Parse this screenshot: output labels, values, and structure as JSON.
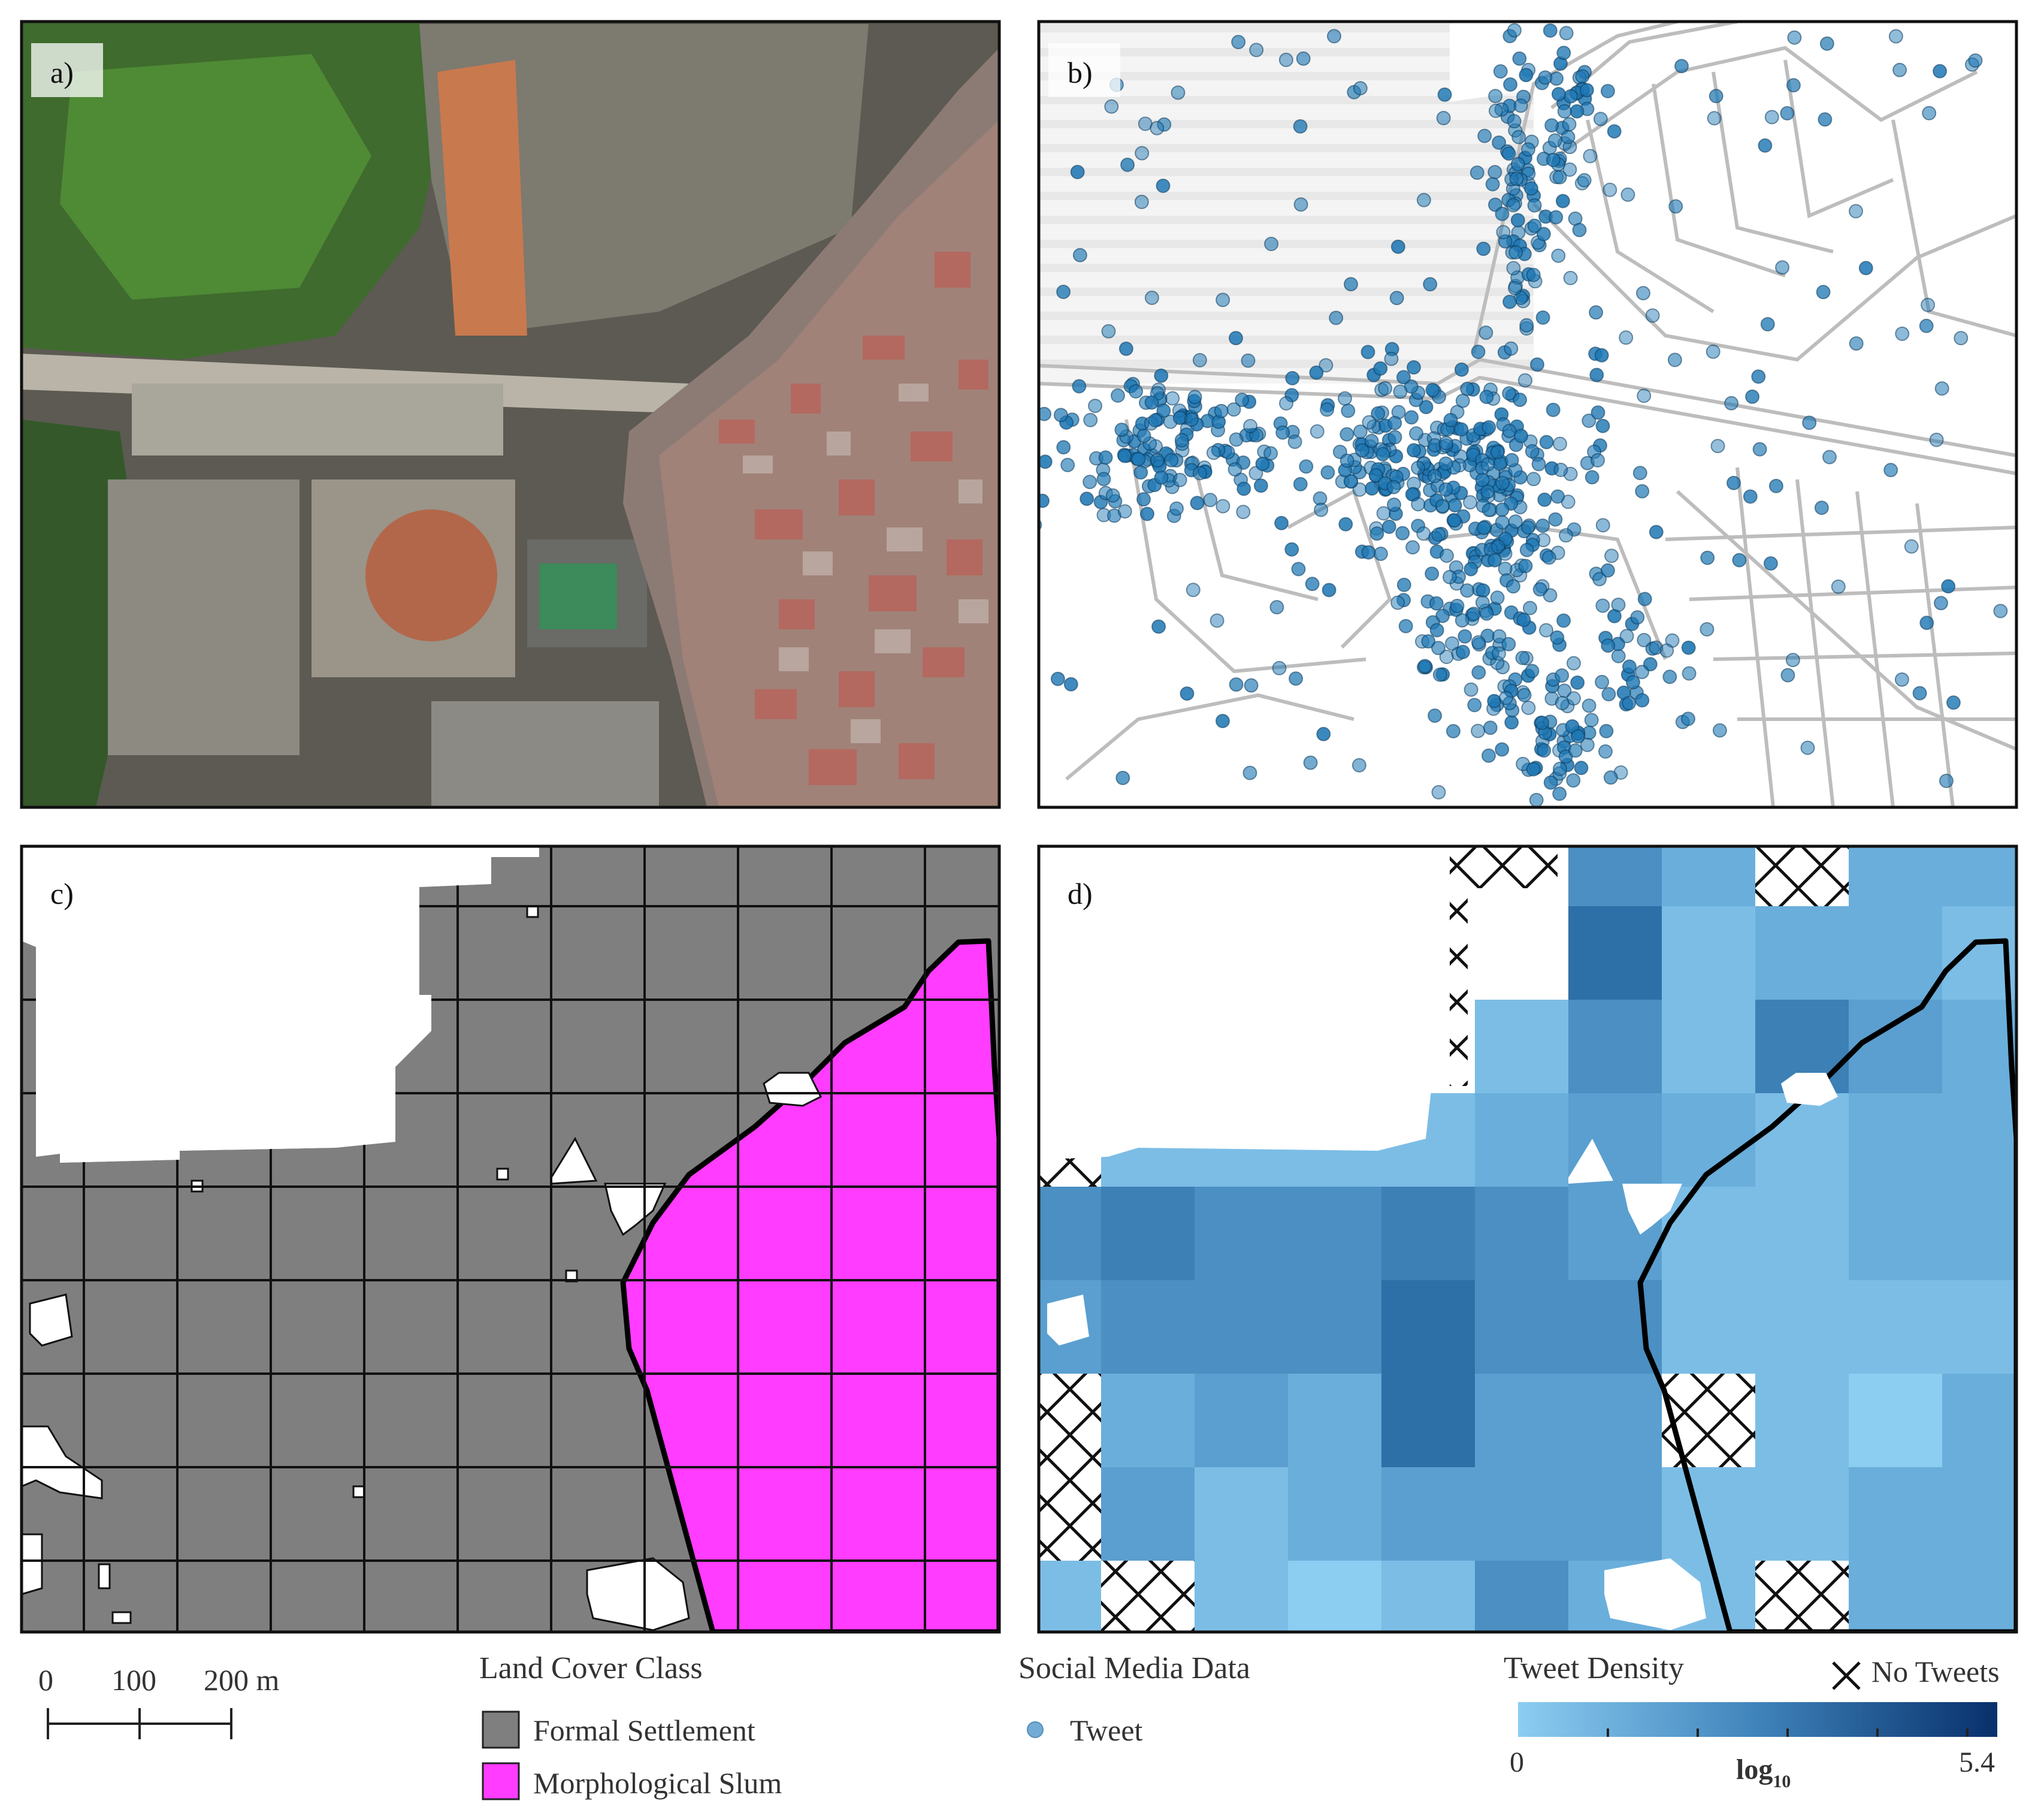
{
  "panels": {
    "a": {
      "label": "a)"
    },
    "b": {
      "label": "b)"
    },
    "c": {
      "label": "c)"
    },
    "d": {
      "label": "d)"
    }
  },
  "scale_bar": {
    "ticks": [
      "0",
      "100",
      "200 m"
    ]
  },
  "land_cover_legend": {
    "title": "Land Cover Class",
    "items": [
      {
        "label": "Formal Settlement",
        "color": "#7f7f7f"
      },
      {
        "label": "Morphological Slum",
        "color": "#ff3cff"
      }
    ]
  },
  "social_media_legend": {
    "title": "Social Media Data",
    "items": [
      {
        "label": "Tweet",
        "color": "#5a9ecf"
      }
    ]
  },
  "tweet_density_legend": {
    "title": "Tweet Density",
    "min": "0",
    "max": "5.4",
    "unit_base": "log",
    "unit_sub": "10",
    "ramp_colors": [
      "#8ccdf2",
      "#08306b"
    ],
    "no_tweets_label": "No Tweets"
  },
  "colors": {
    "formal_settlement": "#7f7f7f",
    "slum": "#ff3cff",
    "tweet_point": "#1f78b4",
    "density_low": "#8ccdf2",
    "density_high": "#08306b"
  }
}
